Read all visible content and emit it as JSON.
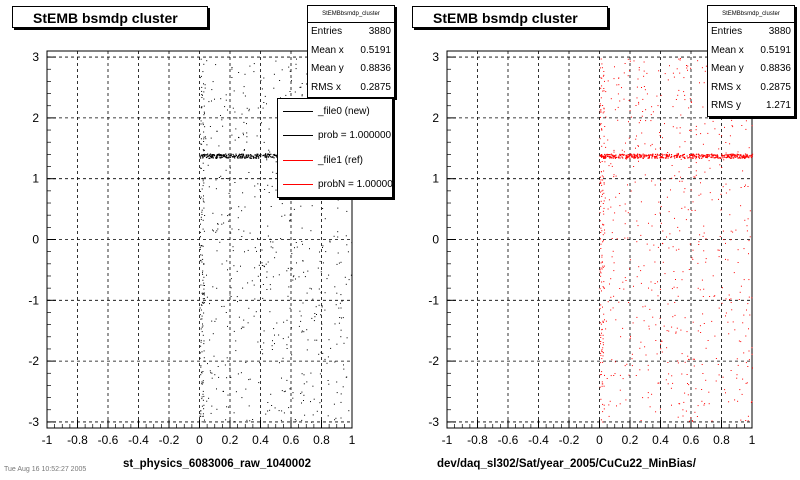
{
  "chart_data": [
    {
      "type": "scatter",
      "title": "StEMB bsmdp cluster",
      "xlabel": "st_physics_6083006_raw_1040002",
      "xlim": [
        -1,
        1
      ],
      "ylim": [
        -3.1,
        3.1
      ],
      "x_ticks": [
        "-1",
        "-0.8",
        "-0.6",
        "-0.4",
        "-0.2",
        "0",
        "0.2",
        "0.4",
        "0.6",
        "0.8",
        "1"
      ],
      "y_ticks": [
        "-3",
        "-2",
        "-1",
        "0",
        "1",
        "2",
        "3"
      ],
      "grid": true,
      "marker_color": "#000000",
      "occupied_x_range": [
        0,
        1
      ],
      "dense_band": {
        "x": [
          0,
          1
        ],
        "y": 1.38
      },
      "stats": {
        "title": "StEMBbsmdp_cluster",
        "rows": [
          {
            "label": "Entries",
            "value": "3880"
          },
          {
            "label": "Mean x",
            "value": "0.5191"
          },
          {
            "label": "Mean y",
            "value": "0.8836"
          },
          {
            "label": "RMS x",
            "value": "0.2875"
          }
        ]
      },
      "legend": {
        "position": "top-right",
        "entries": [
          {
            "label": "_file0 (new)",
            "color": "#000000"
          },
          {
            "label": "prob = 1.000000",
            "color": "#000000"
          },
          {
            "label": "_file1 (ref)",
            "color": "#ff0000"
          },
          {
            "label": "probN = 1.000000",
            "color": "#ff0000"
          }
        ]
      }
    },
    {
      "type": "scatter",
      "title": "StEMB bsmdp cluster",
      "xlabel": "dev/daq_sl302/Sat/year_2005/CuCu22_MinBias/",
      "xlim": [
        -1,
        1
      ],
      "ylim": [
        -3.1,
        3.1
      ],
      "x_ticks": [
        "-1",
        "-0.8",
        "-0.6",
        "-0.4",
        "-0.2",
        "0",
        "0.2",
        "0.4",
        "0.6",
        "0.8",
        "1"
      ],
      "y_ticks": [
        "-3",
        "-2",
        "-1",
        "0",
        "1",
        "2",
        "3"
      ],
      "grid": true,
      "marker_color": "#ff0000",
      "occupied_x_range": [
        0,
        1
      ],
      "dense_band": {
        "x": [
          0,
          1
        ],
        "y": 1.38
      },
      "stats": {
        "title": "StEMBbsmdp_cluster",
        "rows": [
          {
            "label": "Entries",
            "value": "3880"
          },
          {
            "label": "Mean x",
            "value": "0.5191"
          },
          {
            "label": "Mean y",
            "value": "0.8836"
          },
          {
            "label": "RMS x",
            "value": "0.2875"
          },
          {
            "label": "RMS y",
            "value": "1.271"
          }
        ]
      }
    }
  ],
  "footer_note": "Tue Aug 16 10:52:27 2005"
}
